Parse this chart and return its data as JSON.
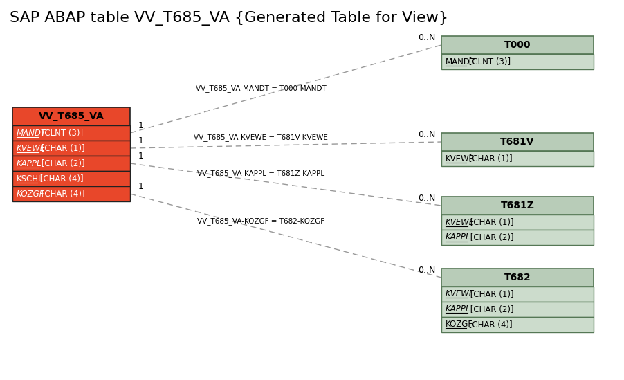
{
  "title": "SAP ABAP table VV_T685_VA {Generated Table for View}",
  "title_fontsize": 16,
  "bg_color": "#ffffff",
  "main_table": {
    "name": "VV_T685_VA",
    "header_bg": "#e8472a",
    "header_fg": "#000000",
    "row_bg": "#e8472a",
    "row_fg": "#ffffff",
    "border_color": "#222222",
    "fields": [
      {
        "text": "MANDT",
        "type": " [CLNT (3)]",
        "italic": true,
        "underline": true
      },
      {
        "text": "KVEWE",
        "type": " [CHAR (1)]",
        "italic": true,
        "underline": true
      },
      {
        "text": "KAPPL",
        "type": " [CHAR (2)]",
        "italic": true,
        "underline": true
      },
      {
        "text": "KSCHL",
        "type": " [CHAR (4)]",
        "italic": false,
        "underline": true
      },
      {
        "text": "KOZGF",
        "type": " [CHAR (4)]",
        "italic": true,
        "underline": false
      }
    ]
  },
  "related_tables": [
    {
      "name": "T000",
      "header_bg": "#b8ccb8",
      "header_fg": "#000000",
      "row_bg": "#ccdccc",
      "row_fg": "#000000",
      "border_color": "#557755",
      "fields": [
        {
          "text": "MANDT",
          "type": " [CLNT (3)]",
          "italic": false,
          "underline": true
        }
      ]
    },
    {
      "name": "T681V",
      "header_bg": "#b8ccb8",
      "header_fg": "#000000",
      "row_bg": "#ccdccc",
      "row_fg": "#000000",
      "border_color": "#557755",
      "fields": [
        {
          "text": "KVEWE",
          "type": " [CHAR (1)]",
          "italic": false,
          "underline": true
        }
      ]
    },
    {
      "name": "T681Z",
      "header_bg": "#b8ccb8",
      "header_fg": "#000000",
      "row_bg": "#ccdccc",
      "row_fg": "#000000",
      "border_color": "#557755",
      "fields": [
        {
          "text": "KVEWE",
          "type": " [CHAR (1)]",
          "italic": true,
          "underline": true
        },
        {
          "text": "KAPPL",
          "type": " [CHAR (2)]",
          "italic": true,
          "underline": true
        }
      ]
    },
    {
      "name": "T682",
      "header_bg": "#b8ccb8",
      "header_fg": "#000000",
      "row_bg": "#ccdccc",
      "row_fg": "#000000",
      "border_color": "#557755",
      "fields": [
        {
          "text": "KVEWE",
          "type": " [CHAR (1)]",
          "italic": true,
          "underline": true
        },
        {
          "text": "KAPPL",
          "type": " [CHAR (2)]",
          "italic": true,
          "underline": true
        },
        {
          "text": "KOZGF",
          "type": " [CHAR (4)]",
          "italic": false,
          "underline": true
        }
      ]
    }
  ],
  "relations": [
    {
      "label": "VV_T685_VA-MANDT = T000-MANDT",
      "from_field_idx": 0,
      "to_table_idx": 0,
      "label1": "1",
      "label2": "0..N"
    },
    {
      "label": "VV_T685_VA-KVEWE = T681V-KVEWE",
      "from_field_idx": 1,
      "to_table_idx": 1,
      "label1": "1",
      "label2": "0..N"
    },
    {
      "label": "VV_T685_VA-KAPPL = T681Z-KAPPL",
      "from_field_idx": 2,
      "to_table_idx": 2,
      "label1": "1",
      "label2": "0..N"
    },
    {
      "label": "VV_T685_VA-KOZGF = T682-KOZGF",
      "from_field_idx": 4,
      "to_table_idx": 3,
      "label1": "1",
      "label2": "0..N"
    }
  ],
  "line_color": "#999999",
  "line_dash": [
    6,
    4
  ]
}
